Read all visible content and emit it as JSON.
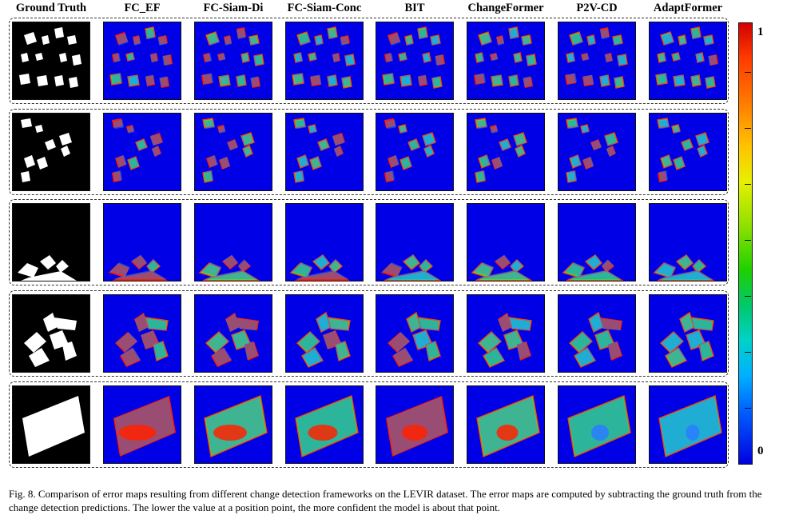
{
  "figure": {
    "columns": [
      "Ground Truth",
      "FC_EF",
      "FC-Siam-Di",
      "FC-Siam-Conc",
      "BIT",
      "ChangeFormer",
      "P2V-CD",
      "AdaptFormer"
    ],
    "colorbar": {
      "max_label": "1",
      "min_label": "0",
      "colormap": "jet",
      "colors": {
        "low": "#0000e0",
        "mid": "#1fd000",
        "high": "#d40000"
      }
    },
    "caption": "Fig. 8.  Comparison of error maps resulting from different change detection frameworks on the LEVIR dataset. The error maps are computed by subtracting the ground truth from the change detection predictions. The lower the value at a position point, the more confident the model is about that point.",
    "rows": [
      {
        "name": "sample-1-scattered-small-buildings"
      },
      {
        "name": "sample-2-scattered-buildings"
      },
      {
        "name": "sample-3-cluster-bottom"
      },
      {
        "name": "sample-4-large-cross-structure"
      },
      {
        "name": "sample-5-large-rectangular-building"
      }
    ]
  }
}
